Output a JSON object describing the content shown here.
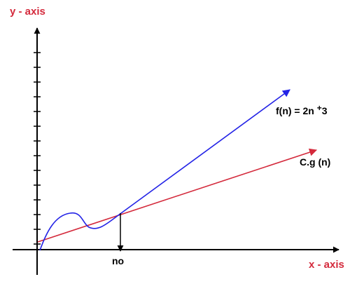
{
  "chart_data": {
    "type": "line",
    "title": "",
    "ylabel": "y - axis",
    "xlabel": "x - axis",
    "marker_label": "no",
    "series": [
      {
        "name": "f(n) = 2n + 3",
        "name_base": "f(n) = 2n ",
        "name_sup": "+",
        "name_tail": "3"
      },
      {
        "name": "C.g (n)"
      }
    ]
  },
  "colors": {
    "axis": "#000000",
    "axis_title": "#d42a3c",
    "series_f": "#2323e6",
    "series_g": "#d42a3c"
  }
}
